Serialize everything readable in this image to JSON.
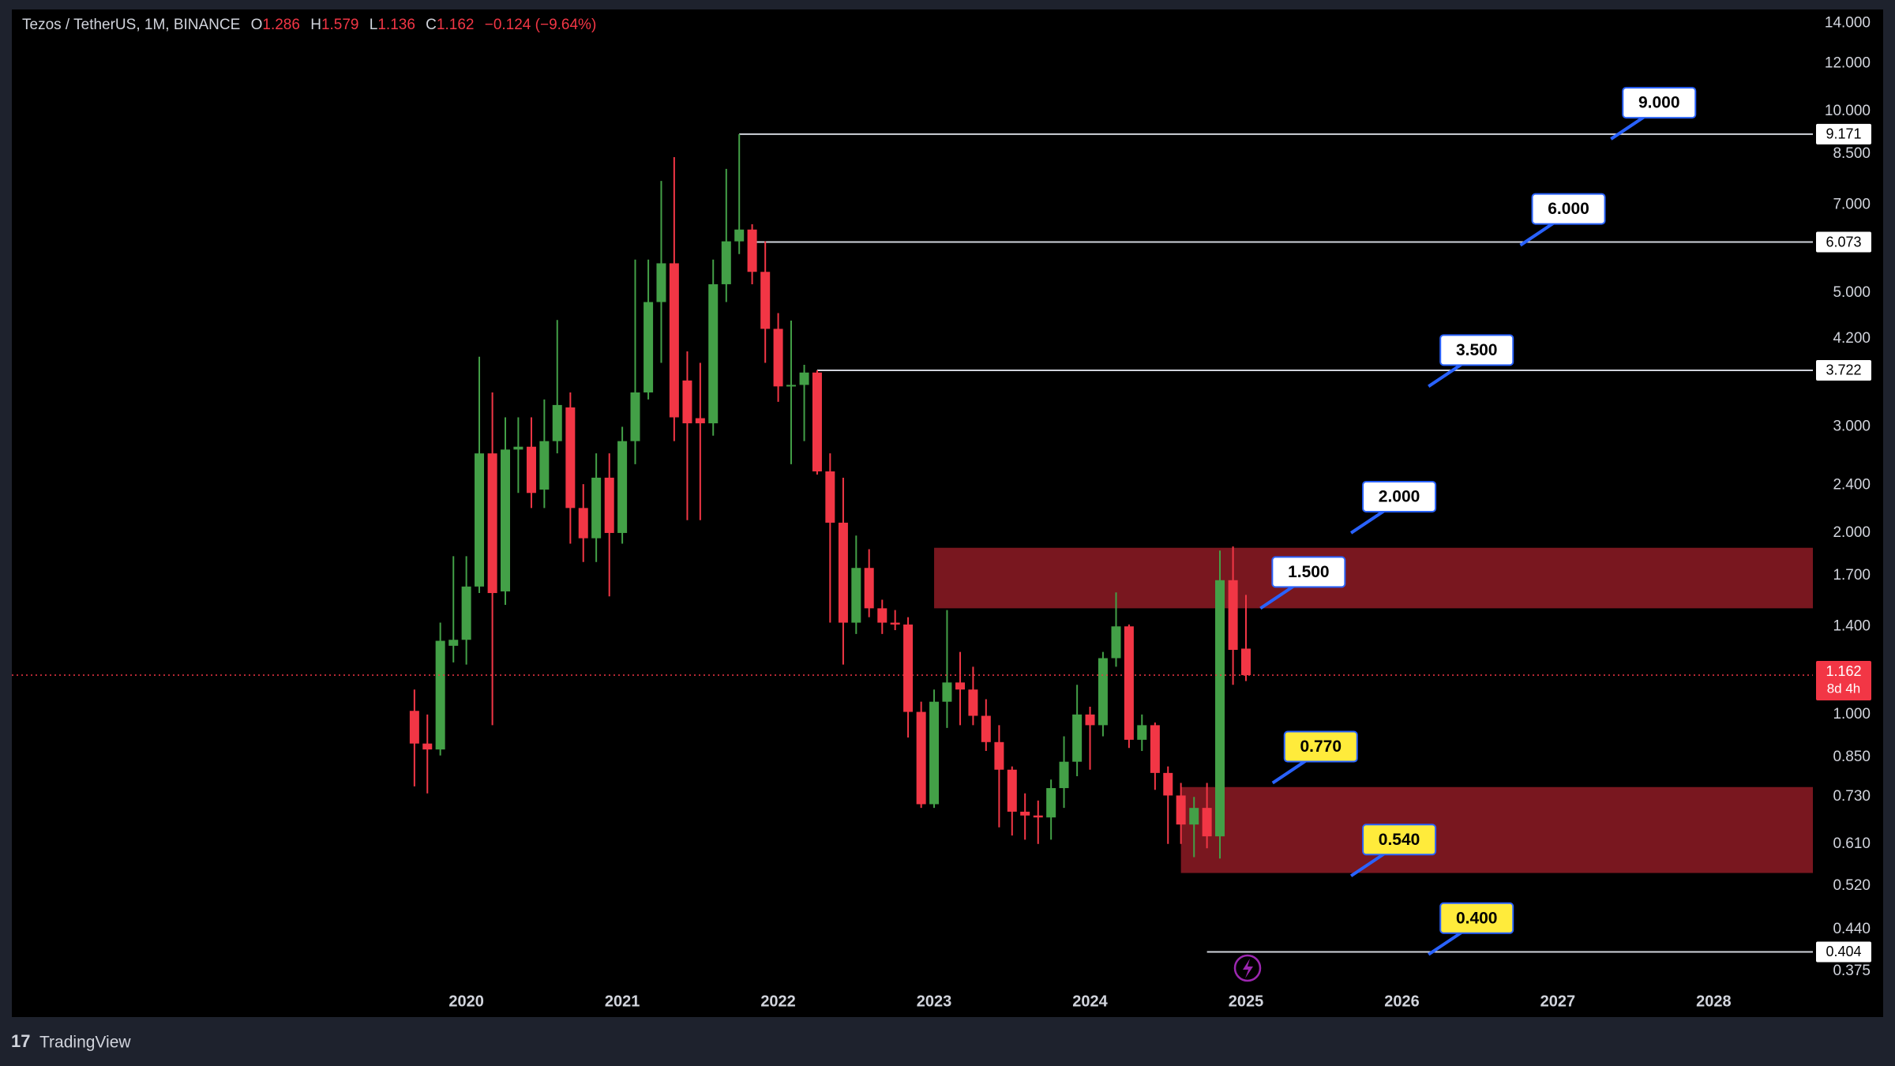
{
  "header": {
    "title": "Tezos / TetherUS, 1M, BINANCE",
    "ohlc_labels": [
      "O",
      "H",
      "L",
      "C"
    ],
    "change": "−0.124 (−9.64%)",
    "countdown": "8d 4h",
    "brand": "TradingView"
  },
  "chart_data": {
    "type": "candlestick",
    "log_scale": true,
    "grid": false,
    "up_color": "#43a047",
    "down_color": "#f23645",
    "x": [
      2019.667,
      2019.75,
      2019.833,
      2019.917,
      2020,
      2020.083,
      2020.167,
      2020.25,
      2020.333,
      2020.417,
      2020.5,
      2020.583,
      2020.667,
      2020.75,
      2020.833,
      2020.917,
      2021,
      2021.083,
      2021.167,
      2021.25,
      2021.333,
      2021.417,
      2021.5,
      2021.583,
      2021.667,
      2021.75,
      2021.833,
      2021.917,
      2022,
      2022.083,
      2022.167,
      2022.25,
      2022.333,
      2022.417,
      2022.5,
      2022.583,
      2022.667,
      2022.75,
      2022.833,
      2022.917,
      2023,
      2023.083,
      2023.167,
      2023.25,
      2023.333,
      2023.417,
      2023.5,
      2023.583,
      2023.667,
      2023.75,
      2023.833,
      2023.917,
      2024,
      2024.083,
      2024.167,
      2024.25,
      2024.333,
      2024.417,
      2024.5,
      2024.583,
      2024.667,
      2024.75,
      2024.833,
      2024.917,
      2025
    ],
    "open": [
      1.014,
      0.895,
      0.875,
      1.3,
      1.33,
      1.63,
      2.71,
      1.6,
      2.75,
      2.78,
      2.36,
      2.84,
      3.23,
      2.2,
      1.96,
      2.47,
      2.0,
      2.84,
      3.42,
      4.83,
      5.6,
      3.58,
      3.1,
      3.04,
      5.17,
      6.09,
      6.37,
      5.42,
      4.36,
      3.5,
      3.52,
      3.69,
      2.53,
      2.08,
      1.42,
      1.75,
      1.5,
      1.42,
      1.41,
      1.01,
      0.71,
      1.05,
      1.13,
      1.1,
      0.995,
      0.9,
      0.81,
      0.69,
      0.68,
      0.675,
      0.755,
      0.835,
      1.0,
      0.96,
      1.24,
      1.4,
      0.908,
      0.96,
      0.8,
      0.734,
      0.657,
      0.7,
      0.628,
      1.67,
      1.286
    ],
    "high": [
      1.1,
      1.0,
      1.42,
      1.83,
      1.83,
      3.92,
      3.42,
      3.11,
      3.11,
      3.11,
      3.33,
      4.51,
      3.42,
      2.41,
      2.71,
      2.71,
      3.0,
      5.68,
      5.68,
      7.67,
      8.4,
      4.0,
      3.83,
      5.68,
      8.03,
      9.171,
      6.5,
      6.09,
      4.63,
      4.5,
      3.8,
      3.722,
      2.71,
      2.47,
      1.98,
      1.88,
      1.55,
      1.49,
      1.45,
      1.05,
      1.1,
      1.49,
      1.27,
      1.2,
      1.06,
      0.96,
      0.82,
      0.74,
      0.72,
      0.78,
      0.92,
      1.12,
      1.03,
      1.27,
      1.594,
      1.41,
      1.0,
      0.97,
      0.82,
      0.77,
      0.73,
      0.77,
      1.87,
      1.9,
      1.579
    ],
    "low": [
      0.76,
      0.74,
      0.855,
      1.22,
      1.21,
      1.59,
      0.96,
      1.52,
      2.33,
      2.2,
      2.2,
      2.71,
      1.92,
      1.79,
      1.79,
      1.57,
      1.92,
      2.6,
      3.33,
      3.83,
      2.84,
      2.1,
      2.1,
      2.9,
      4.83,
      5.8,
      5.17,
      3.83,
      3.3,
      2.6,
      2.84,
      2.5,
      1.42,
      1.21,
      1.36,
      1.45,
      1.36,
      1.38,
      0.916,
      0.7,
      0.7,
      0.95,
      0.96,
      0.96,
      0.87,
      0.65,
      0.63,
      0.62,
      0.61,
      0.62,
      0.7,
      0.79,
      0.81,
      0.92,
      1.2,
      0.88,
      0.87,
      0.75,
      0.61,
      0.61,
      0.58,
      0.6,
      0.577,
      1.12,
      1.136
    ],
    "close": [
      0.895,
      0.875,
      1.325,
      1.33,
      1.63,
      2.71,
      1.59,
      2.75,
      2.78,
      2.33,
      2.84,
      3.26,
      2.2,
      1.96,
      2.47,
      2.0,
      2.84,
      3.42,
      4.83,
      5.6,
      3.11,
      3.04,
      3.04,
      5.17,
      6.09,
      6.37,
      5.42,
      4.36,
      3.5,
      3.52,
      3.69,
      2.53,
      2.08,
      1.42,
      1.75,
      1.5,
      1.42,
      1.41,
      1.01,
      0.71,
      1.05,
      1.13,
      1.1,
      0.995,
      0.9,
      0.81,
      0.69,
      0.68,
      0.675,
      0.755,
      0.835,
      1.0,
      0.96,
      1.24,
      1.4,
      0.908,
      0.96,
      0.8,
      0.734,
      0.657,
      0.7,
      0.628,
      1.67,
      1.28,
      1.162
    ],
    "xlim": [
      2017.085,
      2028.636
    ],
    "xticks": [
      2020,
      2021,
      2022,
      2023,
      2024,
      2025,
      2026,
      2027,
      2028
    ],
    "ylim": [
      0.315,
      14.76
    ],
    "yticks": [
      {
        "value": 14,
        "label": "14.000"
      },
      {
        "value": 12,
        "label": "12.000"
      },
      {
        "value": 10,
        "label": "10.000"
      },
      {
        "value": 8.5,
        "label": "8.500"
      },
      {
        "value": 7,
        "label": "7.000"
      },
      {
        "value": 5,
        "label": "5.000"
      },
      {
        "value": 4.2,
        "label": "4.200"
      },
      {
        "value": 3,
        "label": "3.000"
      },
      {
        "value": 2.4,
        "label": "2.400"
      },
      {
        "value": 2,
        "label": "2.000"
      },
      {
        "value": 1.7,
        "label": "1.700"
      },
      {
        "value": 1.4,
        "label": "1.400"
      },
      {
        "value": 1,
        "label": "1.000"
      },
      {
        "value": 0.85,
        "label": "0.850"
      },
      {
        "value": 0.73,
        "label": "0.730"
      },
      {
        "value": 0.61,
        "label": "0.610"
      },
      {
        "value": 0.52,
        "label": "0.520"
      },
      {
        "value": 0.44,
        "label": "0.440"
      },
      {
        "value": 0.375,
        "label": "0.375"
      }
    ],
    "levels": [
      {
        "value": 9.171,
        "x_start": 2021.75
      },
      {
        "value": 6.073,
        "x_start": 2021.833
      },
      {
        "value": 3.722,
        "x_start": 2022.25
      },
      {
        "value": 0.404,
        "x_start": 2024.75
      }
    ],
    "zones": [
      {
        "from": 1.5,
        "to": 1.89,
        "x_start": 2023.0,
        "color": "#8e1b24"
      },
      {
        "from": 0.546,
        "to": 0.758,
        "x_start": 2024.583,
        "color": "#8e1b24"
      }
    ],
    "targets": [
      {
        "value": 9,
        "label": "9.000",
        "x": 2027.341,
        "color": "#ffffff"
      },
      {
        "value": 6,
        "label": "6.000",
        "x": 2026.76,
        "color": "#ffffff"
      },
      {
        "value": 3.5,
        "label": "3.500",
        "x": 2026.171,
        "color": "#ffffff"
      },
      {
        "value": 2,
        "label": "2.000",
        "x": 2025.674,
        "color": "#ffffff"
      },
      {
        "value": 1.5,
        "label": "1.500",
        "x": 2025.093,
        "color": "#ffffff"
      },
      {
        "value": 0.77,
        "label": "0.770",
        "x": 2025.171,
        "color": "#ffeb3b"
      },
      {
        "value": 0.54,
        "label": "0.540",
        "x": 2025.674,
        "color": "#ffeb3b"
      },
      {
        "value": 0.4,
        "label": "0.400",
        "x": 2026.171,
        "color": "#ffeb3b"
      }
    ]
  }
}
